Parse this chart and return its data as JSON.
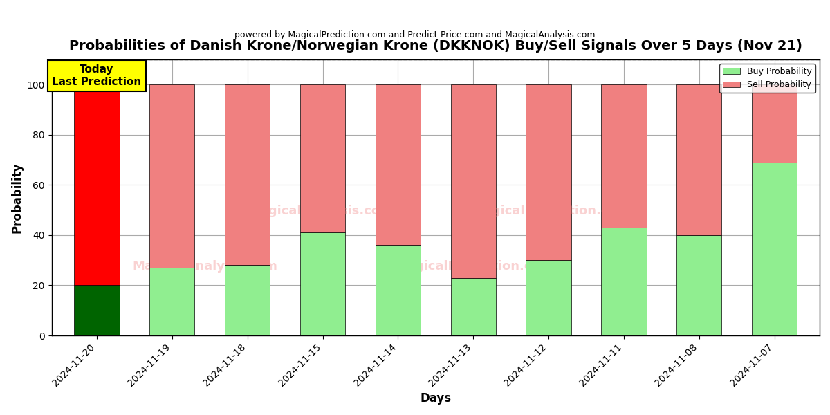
{
  "title": "Probabilities of Danish Krone/Norwegian Krone (DKKNOK) Buy/Sell Signals Over 5 Days (Nov 21)",
  "subtitle": "powered by MagicalPrediction.com and Predict-Price.com and MagicalAnalysis.com",
  "xlabel": "Days",
  "ylabel": "Probability",
  "categories": [
    "2024-11-20",
    "2024-11-19",
    "2024-11-18",
    "2024-11-15",
    "2024-11-14",
    "2024-11-13",
    "2024-11-12",
    "2024-11-11",
    "2024-11-08",
    "2024-11-07"
  ],
  "buy_values": [
    20,
    27,
    28,
    41,
    36,
    23,
    30,
    43,
    40,
    69
  ],
  "sell_values": [
    80,
    73,
    72,
    59,
    64,
    77,
    70,
    57,
    60,
    31
  ],
  "buy_colors_special": [
    "#006400",
    null,
    null,
    null,
    null,
    null,
    null,
    null,
    null,
    null
  ],
  "sell_colors_special": [
    "#ff0000",
    null,
    null,
    null,
    null,
    null,
    null,
    null,
    null,
    null
  ],
  "buy_color_default": "#90EE90",
  "sell_color_default": "#F08080",
  "buy_color_today": "#006400",
  "sell_color_today": "#ff0000",
  "ylim": [
    0,
    110
  ],
  "yticks": [
    0,
    20,
    40,
    60,
    80,
    100
  ],
  "dashed_line_y": 110,
  "watermark": "MagicalAnalysis.com    MagicalPrediction.com",
  "today_label": "Today\nLast Prediction",
  "today_box_color": "#FFFF00",
  "legend_buy_label": "Buy Probability",
  "legend_sell_label": "Sell Probability",
  "bar_width": 0.6,
  "background_color": "#ffffff",
  "grid_color": "#aaaaaa"
}
